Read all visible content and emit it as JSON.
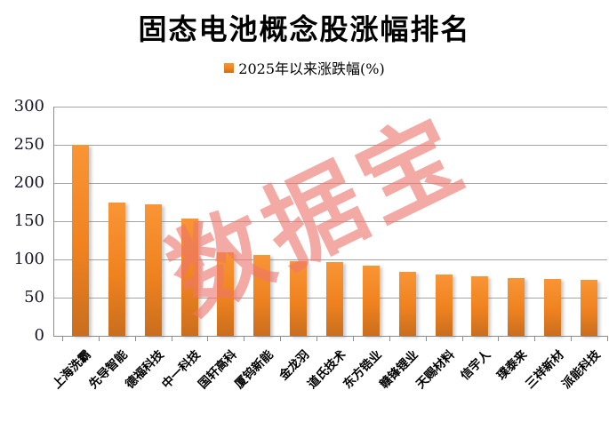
{
  "chart_data": {
    "type": "bar",
    "title": "固态电池概念股涨幅排名",
    "legend": {
      "label": "2025年以来涨跌幅(%)",
      "position": "top"
    },
    "watermark": "数据宝",
    "categories": [
      "上海洗霸",
      "先导智能",
      "德福科技",
      "中一科技",
      "国轩高科",
      "厦钨新能",
      "金龙羽",
      "道氏技术",
      "东方锆业",
      "赣锋锂业",
      "天赐材料",
      "信宇人",
      "璞泰来",
      "三祥新材",
      "派能科技"
    ],
    "values": [
      250,
      174,
      172,
      154,
      109,
      106,
      98,
      97,
      92,
      84,
      80,
      78,
      76,
      75,
      73
    ],
    "xlabel": "",
    "ylabel": "",
    "ylim": [
      0,
      300
    ],
    "yticks": [
      0,
      50,
      100,
      150,
      200,
      250,
      300
    ],
    "grid": true,
    "colors": {
      "bar_top": "#F99535",
      "bar_mid": "#EF821F",
      "bar_bottom": "#C96E1E",
      "gridline": "#A3A3A3",
      "axis": "#8C8C8C",
      "watermark": "rgba(238,118,108,0.62)",
      "text": "#000000"
    }
  }
}
